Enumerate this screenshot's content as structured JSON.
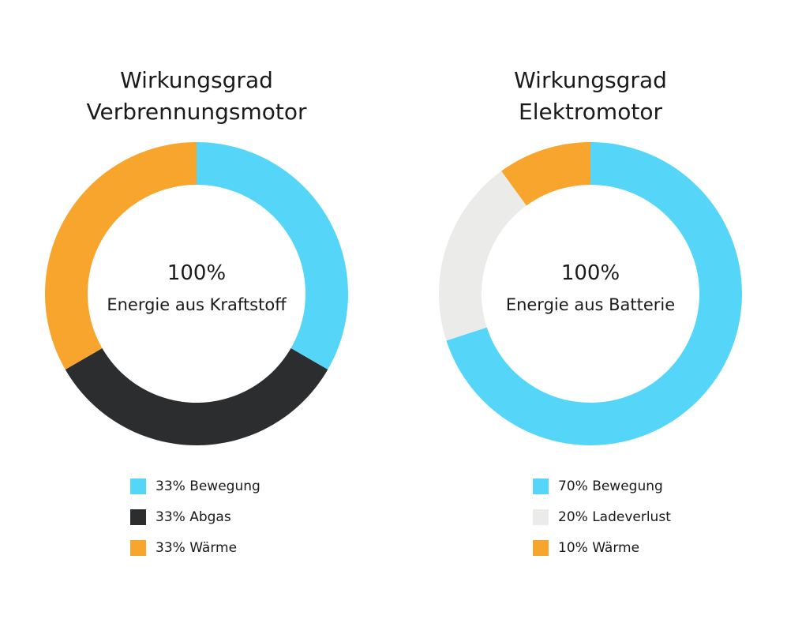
{
  "chart_data": [
    {
      "type": "pie",
      "title_lines": [
        "Wirkungsgrad",
        "Verbrennungsmotor"
      ],
      "center_value": "100%",
      "center_label": "Energie aus Kraftstoff",
      "series": [
        {
          "label": "33% Bewegung",
          "value": 33,
          "color": "#55d6f9"
        },
        {
          "label": "33% Abgas",
          "value": 33,
          "color": "#2b2d2e"
        },
        {
          "label": "33% Wärme",
          "value": 33,
          "color": "#f7a52d"
        }
      ]
    },
    {
      "type": "pie",
      "title_lines": [
        "Wirkungsgrad",
        "Elektromotor"
      ],
      "center_value": "100%",
      "center_label": "Energie aus Batterie",
      "series": [
        {
          "label": "70% Bewegung",
          "value": 70,
          "color": "#55d6f9"
        },
        {
          "label": "20% Ladeverlust",
          "value": 20,
          "color": "#ebebea"
        },
        {
          "label": "10% Wärme",
          "value": 10,
          "color": "#f7a52d"
        }
      ]
    }
  ]
}
